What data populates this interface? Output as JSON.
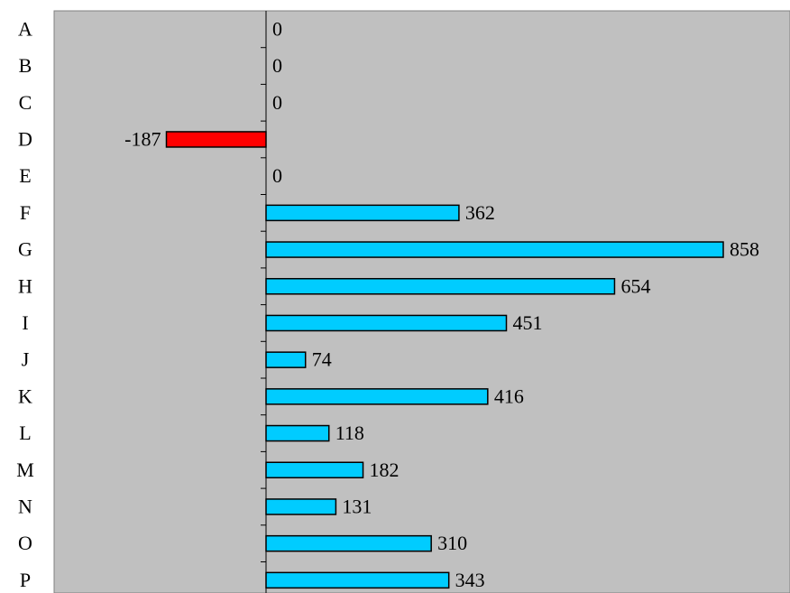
{
  "chart_data": {
    "type": "bar",
    "orientation": "horizontal",
    "title": "",
    "xlabel": "",
    "ylabel": "",
    "categories": [
      "A",
      "B",
      "C",
      "D",
      "E",
      "F",
      "G",
      "H",
      "I",
      "J",
      "K",
      "L",
      "M",
      "N",
      "O",
      "P"
    ],
    "values": [
      0,
      0,
      0,
      -187,
      0,
      362,
      858,
      654,
      451,
      74,
      416,
      118,
      182,
      131,
      310,
      343
    ],
    "data_labels": [
      "0",
      "0",
      "0",
      "-187",
      "0",
      "362",
      "858",
      "654",
      "451",
      "74",
      "416",
      "118",
      "182",
      "131",
      "310",
      "343"
    ],
    "xlim": [
      -400,
      990
    ],
    "grid": false,
    "legend": "none",
    "colors": {
      "positive": "#00ccff",
      "negative": "#ff0000",
      "plot_background": "#c0c0c0",
      "bar_outline": "#000000"
    }
  }
}
